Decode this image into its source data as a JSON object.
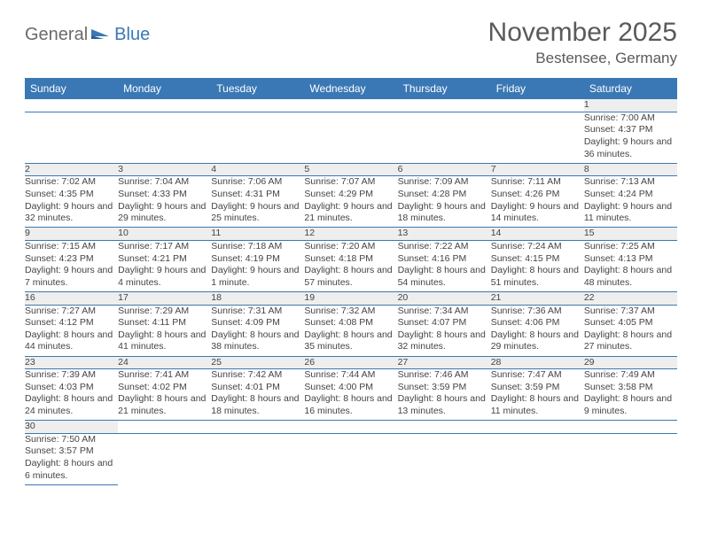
{
  "logo": {
    "part1": "General",
    "part2": "Blue"
  },
  "title": "November 2025",
  "location": "Bestensee, Germany",
  "colors": {
    "header_bg": "#3a78b5",
    "header_fg": "#ffffff",
    "daynum_bg": "#eeeeee",
    "rule": "#3a78b5",
    "logo_gray": "#6a6a6a",
    "logo_blue": "#3a78b5",
    "text": "#444444"
  },
  "weekdays": [
    "Sunday",
    "Monday",
    "Tuesday",
    "Wednesday",
    "Thursday",
    "Friday",
    "Saturday"
  ],
  "weeks": [
    [
      null,
      null,
      null,
      null,
      null,
      null,
      {
        "n": "1",
        "sr": "7:00 AM",
        "ss": "4:37 PM",
        "dl": "9 hours and 36 minutes."
      }
    ],
    [
      {
        "n": "2",
        "sr": "7:02 AM",
        "ss": "4:35 PM",
        "dl": "9 hours and 32 minutes."
      },
      {
        "n": "3",
        "sr": "7:04 AM",
        "ss": "4:33 PM",
        "dl": "9 hours and 29 minutes."
      },
      {
        "n": "4",
        "sr": "7:06 AM",
        "ss": "4:31 PM",
        "dl": "9 hours and 25 minutes."
      },
      {
        "n": "5",
        "sr": "7:07 AM",
        "ss": "4:29 PM",
        "dl": "9 hours and 21 minutes."
      },
      {
        "n": "6",
        "sr": "7:09 AM",
        "ss": "4:28 PM",
        "dl": "9 hours and 18 minutes."
      },
      {
        "n": "7",
        "sr": "7:11 AM",
        "ss": "4:26 PM",
        "dl": "9 hours and 14 minutes."
      },
      {
        "n": "8",
        "sr": "7:13 AM",
        "ss": "4:24 PM",
        "dl": "9 hours and 11 minutes."
      }
    ],
    [
      {
        "n": "9",
        "sr": "7:15 AM",
        "ss": "4:23 PM",
        "dl": "9 hours and 7 minutes."
      },
      {
        "n": "10",
        "sr": "7:17 AM",
        "ss": "4:21 PM",
        "dl": "9 hours and 4 minutes."
      },
      {
        "n": "11",
        "sr": "7:18 AM",
        "ss": "4:19 PM",
        "dl": "9 hours and 1 minute."
      },
      {
        "n": "12",
        "sr": "7:20 AM",
        "ss": "4:18 PM",
        "dl": "8 hours and 57 minutes."
      },
      {
        "n": "13",
        "sr": "7:22 AM",
        "ss": "4:16 PM",
        "dl": "8 hours and 54 minutes."
      },
      {
        "n": "14",
        "sr": "7:24 AM",
        "ss": "4:15 PM",
        "dl": "8 hours and 51 minutes."
      },
      {
        "n": "15",
        "sr": "7:25 AM",
        "ss": "4:13 PM",
        "dl": "8 hours and 48 minutes."
      }
    ],
    [
      {
        "n": "16",
        "sr": "7:27 AM",
        "ss": "4:12 PM",
        "dl": "8 hours and 44 minutes."
      },
      {
        "n": "17",
        "sr": "7:29 AM",
        "ss": "4:11 PM",
        "dl": "8 hours and 41 minutes."
      },
      {
        "n": "18",
        "sr": "7:31 AM",
        "ss": "4:09 PM",
        "dl": "8 hours and 38 minutes."
      },
      {
        "n": "19",
        "sr": "7:32 AM",
        "ss": "4:08 PM",
        "dl": "8 hours and 35 minutes."
      },
      {
        "n": "20",
        "sr": "7:34 AM",
        "ss": "4:07 PM",
        "dl": "8 hours and 32 minutes."
      },
      {
        "n": "21",
        "sr": "7:36 AM",
        "ss": "4:06 PM",
        "dl": "8 hours and 29 minutes."
      },
      {
        "n": "22",
        "sr": "7:37 AM",
        "ss": "4:05 PM",
        "dl": "8 hours and 27 minutes."
      }
    ],
    [
      {
        "n": "23",
        "sr": "7:39 AM",
        "ss": "4:03 PM",
        "dl": "8 hours and 24 minutes."
      },
      {
        "n": "24",
        "sr": "7:41 AM",
        "ss": "4:02 PM",
        "dl": "8 hours and 21 minutes."
      },
      {
        "n": "25",
        "sr": "7:42 AM",
        "ss": "4:01 PM",
        "dl": "8 hours and 18 minutes."
      },
      {
        "n": "26",
        "sr": "7:44 AM",
        "ss": "4:00 PM",
        "dl": "8 hours and 16 minutes."
      },
      {
        "n": "27",
        "sr": "7:46 AM",
        "ss": "3:59 PM",
        "dl": "8 hours and 13 minutes."
      },
      {
        "n": "28",
        "sr": "7:47 AM",
        "ss": "3:59 PM",
        "dl": "8 hours and 11 minutes."
      },
      {
        "n": "29",
        "sr": "7:49 AM",
        "ss": "3:58 PM",
        "dl": "8 hours and 9 minutes."
      }
    ],
    [
      {
        "n": "30",
        "sr": "7:50 AM",
        "ss": "3:57 PM",
        "dl": "8 hours and 6 minutes."
      },
      null,
      null,
      null,
      null,
      null,
      null
    ]
  ],
  "labels": {
    "sunrise": "Sunrise:",
    "sunset": "Sunset:",
    "daylight": "Daylight:"
  }
}
